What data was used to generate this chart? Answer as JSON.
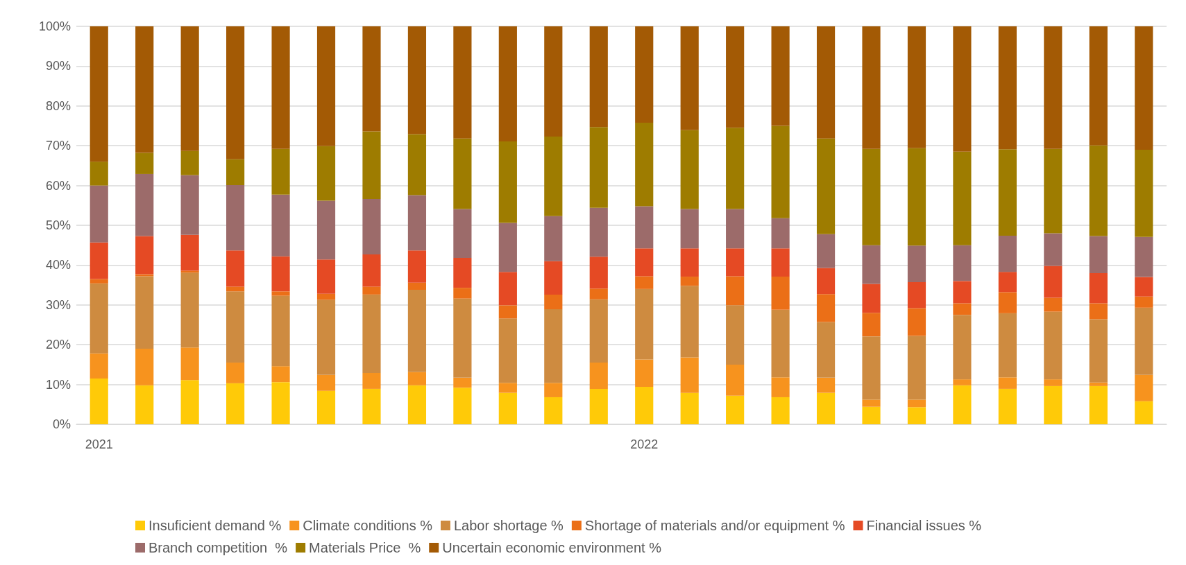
{
  "chart_data": {
    "type": "bar",
    "stacked": true,
    "grid": "y",
    "legend": "bottom",
    "categories": [
      "2021",
      null,
      null,
      null,
      null,
      null,
      null,
      null,
      null,
      null,
      null,
      null,
      "2022",
      null,
      null,
      null,
      null,
      null,
      null,
      null,
      null,
      null,
      null,
      null
    ],
    "ylim": [
      0,
      100
    ],
    "yticks": [
      {
        "value": 0,
        "label": "0%"
      },
      {
        "value": 10,
        "label": "10%"
      },
      {
        "value": 20,
        "label": "20%"
      },
      {
        "value": 30,
        "label": "30%"
      },
      {
        "value": 40,
        "label": "40%"
      },
      {
        "value": 50,
        "label": "50%"
      },
      {
        "value": 60,
        "label": "60%"
      },
      {
        "value": 70,
        "label": "70%"
      },
      {
        "value": 80,
        "label": "80%"
      },
      {
        "value": 90,
        "label": "90%"
      },
      {
        "value": 100,
        "label": "100%"
      }
    ],
    "series": [
      {
        "name": "Insuficient demand %",
        "color": "#ffca08",
        "values": [
          11.5,
          9.8,
          11.1,
          10.3,
          10.6,
          8.4,
          8.9,
          9.8,
          9.2,
          7.9,
          6.8,
          8.9,
          9.4,
          7.9,
          7.2,
          6.8,
          7.9,
          4.4,
          4.3,
          9.8,
          8.9,
          9.6,
          9.6,
          5.8
        ]
      },
      {
        "name": "Climate conditions %",
        "color": "#f7931e",
        "values": [
          6.3,
          9.2,
          8.2,
          5.2,
          4.0,
          4.0,
          4.0,
          3.3,
          2.5,
          2.5,
          3.6,
          6.6,
          6.9,
          8.9,
          7.8,
          5.0,
          3.8,
          1.8,
          1.9,
          1.5,
          2.9,
          1.7,
          0.9,
          6.6
        ]
      },
      {
        "name": "Labor shortage %",
        "color": "#ce8b40",
        "values": [
          17.6,
          18.2,
          18.8,
          17.9,
          17.7,
          18.9,
          19.7,
          20.7,
          19.9,
          16.2,
          18.5,
          15.9,
          17.7,
          18.0,
          14.9,
          17.0,
          14.0,
          15.9,
          16.0,
          16.2,
          16.1,
          17.0,
          15.9,
          16.9
        ]
      },
      {
        "name": "Shortage of materials and/or equipment %",
        "color": "#eb6f17",
        "values": [
          1.1,
          0.5,
          0.5,
          1.2,
          1.1,
          1.5,
          2.0,
          1.8,
          2.7,
          3.3,
          3.7,
          2.7,
          3.2,
          2.3,
          7.3,
          8.3,
          7.0,
          5.9,
          7.0,
          2.9,
          5.3,
          3.5,
          4.0,
          2.8
        ]
      },
      {
        "name": "Financial issues %",
        "color": "#e54a24",
        "values": [
          9.2,
          9.6,
          9.0,
          9.1,
          8.8,
          8.6,
          8.1,
          8.1,
          7.5,
          8.4,
          8.4,
          8.0,
          7.0,
          7.1,
          7.0,
          7.1,
          6.6,
          7.3,
          6.5,
          5.6,
          5.1,
          8.0,
          7.6,
          4.9
        ]
      },
      {
        "name": "Branch competition  %",
        "color": "#9c6b6a",
        "values": [
          14.3,
          15.6,
          15.0,
          16.4,
          15.5,
          14.8,
          13.9,
          13.9,
          12.3,
          12.3,
          11.3,
          12.3,
          10.6,
          9.9,
          9.9,
          7.6,
          8.5,
          9.7,
          9.2,
          9.0,
          9.1,
          8.2,
          9.3,
          10.1
        ]
      },
      {
        "name": "Materials Price  %",
        "color": "#9e7c00",
        "values": [
          6.0,
          5.3,
          6.1,
          6.5,
          11.5,
          13.7,
          17.0,
          15.3,
          17.7,
          20.5,
          20.0,
          20.3,
          21.0,
          19.8,
          20.4,
          23.2,
          24.0,
          24.2,
          24.5,
          23.5,
          21.7,
          21.2,
          22.8,
          21.9
        ]
      },
      {
        "name": "Uncertain economic environment %",
        "color": "#a35a05",
        "values": [
          34.0,
          31.8,
          31.3,
          33.4,
          30.8,
          30.1,
          26.4,
          27.1,
          28.2,
          28.9,
          27.7,
          25.3,
          24.2,
          26.1,
          25.5,
          25.0,
          28.2,
          30.8,
          30.6,
          31.5,
          30.9,
          30.8,
          29.9,
          31.0
        ]
      }
    ]
  }
}
